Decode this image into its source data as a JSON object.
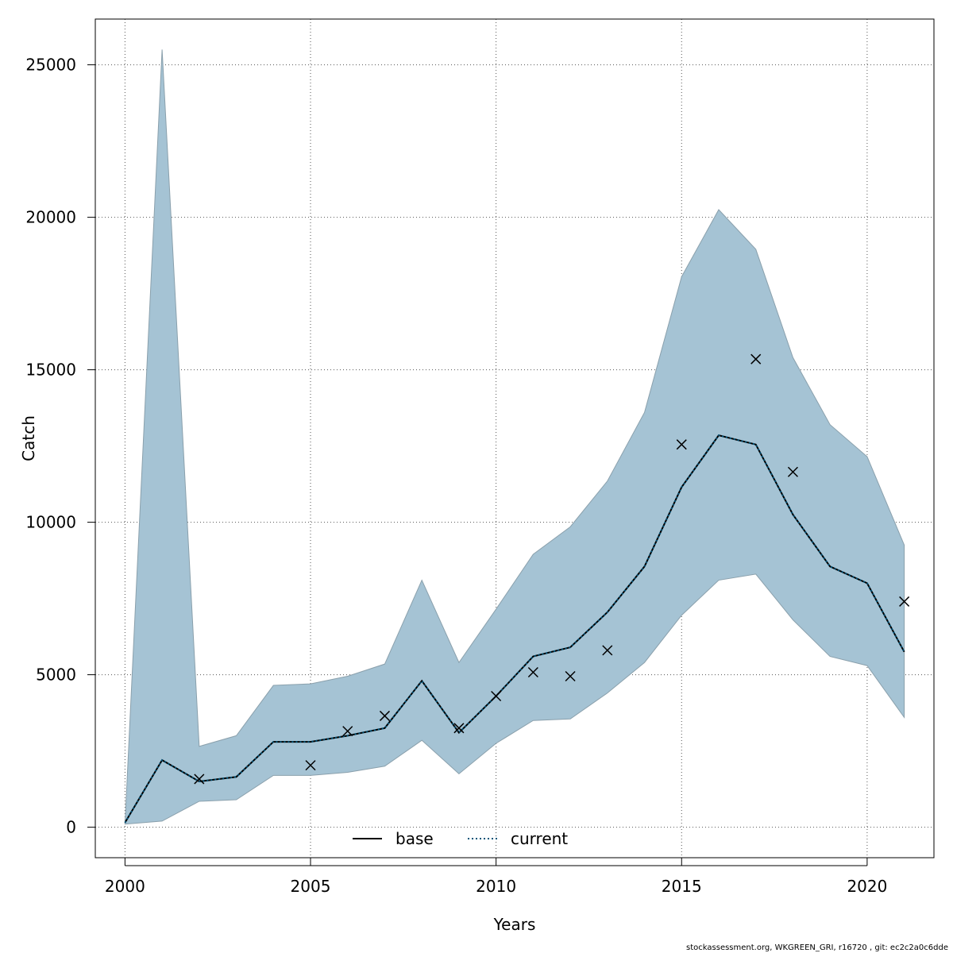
{
  "chart_data": {
    "type": "line",
    "xlabel": "Years",
    "ylabel": "Catch",
    "xlim": [
      1999.2,
      2021.8
    ],
    "ylim": [
      -1000,
      26500
    ],
    "xticks": [
      2000,
      2005,
      2010,
      2015,
      2020
    ],
    "yticks": [
      0,
      5000,
      10000,
      15000,
      20000,
      25000
    ],
    "grid": true,
    "x": [
      2000,
      2001,
      2002,
      2003,
      2004,
      2005,
      2006,
      2007,
      2008,
      2009,
      2010,
      2011,
      2012,
      2013,
      2014,
      2015,
      2016,
      2017,
      2018,
      2019,
      2020,
      2021
    ],
    "band": {
      "color": "#a5c3d4",
      "lower": [
        100,
        200,
        850,
        900,
        1700,
        1700,
        1800,
        2000,
        2850,
        1750,
        2750,
        3500,
        3550,
        4400,
        5400,
        6950,
        8100,
        8300,
        6800,
        5600,
        5300,
        3600
      ],
      "upper": [
        100,
        25500,
        2650,
        3000,
        4650,
        4700,
        4950,
        5350,
        8100,
        5400,
        7150,
        8950,
        9850,
        11350,
        13600,
        18050,
        20250,
        18950,
        15400,
        13200,
        12150,
        9250
      ]
    },
    "series": [
      {
        "name": "base",
        "style": "solid",
        "color": "#000000",
        "values": [
          150,
          2200,
          1500,
          1650,
          2800,
          2800,
          3000,
          3250,
          4800,
          3100,
          4300,
          5600,
          5900,
          7050,
          8550,
          11150,
          12850,
          12550,
          10250,
          8550,
          8000,
          5750
        ]
      },
      {
        "name": "current",
        "style": "dotted",
        "color": "#00557a",
        "values": [
          150,
          2200,
          1500,
          1650,
          2800,
          2800,
          3000,
          3250,
          4800,
          3100,
          4300,
          5600,
          5900,
          7050,
          8550,
          11150,
          12850,
          12550,
          10250,
          8550,
          8000,
          5750
        ]
      }
    ],
    "observations": {
      "marker": "x",
      "points": [
        {
          "x": 2002,
          "y": 1580
        },
        {
          "x": 2005,
          "y": 2030
        },
        {
          "x": 2006,
          "y": 3150
        },
        {
          "x": 2007,
          "y": 3650
        },
        {
          "x": 2009,
          "y": 3250
        },
        {
          "x": 2010,
          "y": 4300
        },
        {
          "x": 2011,
          "y": 5080
        },
        {
          "x": 2012,
          "y": 4950
        },
        {
          "x": 2013,
          "y": 5800
        },
        {
          "x": 2015,
          "y": 12550
        },
        {
          "x": 2017,
          "y": 15350
        },
        {
          "x": 2018,
          "y": 11650
        },
        {
          "x": 2021,
          "y": 7400
        }
      ]
    },
    "legend": {
      "placement": "bottom-center",
      "entries": [
        {
          "label": "base",
          "style": "solid",
          "color": "#000000"
        },
        {
          "label": "current",
          "style": "dotted",
          "color": "#00557a"
        }
      ]
    }
  },
  "footer": "stockassessment.org, WKGREEN_GRI, r16720 , git: ec2c2a0c6dde"
}
